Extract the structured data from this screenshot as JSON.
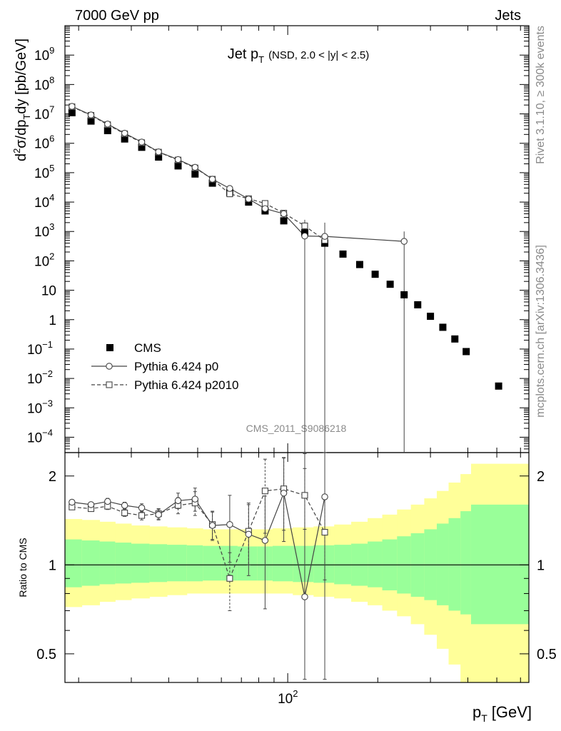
{
  "header": {
    "left": "7000 GeV pp",
    "right": "Jets"
  },
  "side_labels": {
    "rivet": "Rivet 3.1.10, ≥ 300k events",
    "mcplots": "mcplots.cern.ch [arXiv:1306.3436]"
  },
  "watermark": "CMS_2011_S9086218",
  "chart_data": [
    {
      "type": "scatter",
      "title_main": "Jet p",
      "title_sub": "T",
      "title_detail": "(NSD, 2.0 < |y| < 2.5)",
      "ylabel": {
        "d": "d",
        "sup2": "2",
        "sigma_part": "σ/dp",
        "subT": "T",
        "tail": "dy [pb/GeV]"
      },
      "xlog": true,
      "ylog": true,
      "xlim": [
        18,
        640
      ],
      "ylim": [
        3e-05,
        10000000000.0
      ],
      "y_ticks": [
        {
          "v": 1000000000.0,
          "base": "10",
          "exp": "9"
        },
        {
          "v": 100000000.0,
          "base": "10",
          "exp": "8"
        },
        {
          "v": 10000000.0,
          "base": "10",
          "exp": "7"
        },
        {
          "v": 1000000.0,
          "base": "10",
          "exp": "6"
        },
        {
          "v": 100000.0,
          "base": "10",
          "exp": "5"
        },
        {
          "v": 10000.0,
          "base": "10",
          "exp": "4"
        },
        {
          "v": 1000.0,
          "base": "10",
          "exp": "3"
        },
        {
          "v": 100.0,
          "base": "10",
          "exp": "2"
        },
        {
          "v": 10,
          "base": "10",
          "exp": ""
        },
        {
          "v": 1,
          "base": "1",
          "exp": ""
        },
        {
          "v": 0.1,
          "base": "10",
          "exp": "−1"
        },
        {
          "v": 0.01,
          "base": "10",
          "exp": "−2"
        },
        {
          "v": 0.001,
          "base": "10",
          "exp": "−3"
        },
        {
          "v": 0.0001,
          "base": "10",
          "exp": "−4"
        }
      ],
      "legend": {
        "placement": "lower-left",
        "entries": [
          "CMS",
          "Pythia 6.424 p0",
          "Pythia 6.424 p2010"
        ]
      },
      "series": [
        {
          "name": "CMS",
          "style": "filled-square",
          "color": "#000000",
          "x": [
            19,
            22,
            25,
            28.5,
            32.5,
            37,
            43,
            49,
            56,
            64,
            74,
            84,
            97,
            114,
            133,
            153,
            174,
            196,
            220,
            245,
            272,
            300,
            330,
            362,
            395,
            507
          ],
          "y": [
            11000000.0,
            5700000.0,
            2700000.0,
            1400000.0,
            730000.0,
            340000.0,
            170000.0,
            90000.0,
            44000.0,
            21000.0,
            10000.0,
            5000.0,
            2300.0,
            900.0,
            400.0,
            170.0,
            75,
            35,
            16,
            7,
            3.2,
            1.3,
            0.55,
            0.22,
            0.082,
            0.0055
          ]
        },
        {
          "name": "Pythia 6.424 p0",
          "style": "open-circle-solid",
          "color": "#444444",
          "x": [
            19,
            22,
            25,
            28.5,
            32.5,
            37,
            43,
            49,
            56,
            64,
            74,
            84,
            97,
            114,
            133,
            245
          ],
          "y": [
            18000000.0,
            9200000.0,
            4500000.0,
            2200000.0,
            1100000.0,
            510000.0,
            280000.0,
            152000.0,
            60000.0,
            29000.0,
            12700.0,
            6000.0,
            4000.0,
            700.0,
            680.0,
            460.0
          ]
        },
        {
          "name": "Pythia 6.424 p2010",
          "style": "open-square-dashed",
          "color": "#444444",
          "x": [
            19,
            22,
            25,
            28.5,
            32.5,
            37,
            43,
            49,
            56,
            64,
            74,
            84,
            97,
            114,
            133
          ],
          "y": [
            17500000.0,
            8900000.0,
            4300000.0,
            2100000.0,
            1050000.0,
            500000.0,
            270000.0,
            145000.0,
            60000.0,
            19000.0,
            13000.0,
            9000.0,
            4200.0,
            1550.0,
            500.0
          ]
        }
      ]
    },
    {
      "type": "scatter",
      "ylabel": "Ratio to CMS",
      "xlabel_main": "p",
      "xlabel_sub": "T",
      "xlabel_unit": "[GeV]",
      "xlog": true,
      "ylog": true,
      "xlim": [
        18,
        640
      ],
      "ylim": [
        0.4,
        2.4
      ],
      "y_ticks": [
        {
          "v": 0.5,
          "label": "0.5"
        },
        {
          "v": 1,
          "label": "1"
        },
        {
          "v": 2,
          "label": "2"
        }
      ],
      "x_major_tick": {
        "v": 100,
        "base": "10",
        "exp": "2"
      },
      "band_colors": {
        "inner": "#99ff99",
        "outer": "#ffff99"
      },
      "series": [
        {
          "name": "Pythia 6.424 p0",
          "style": "open-circle-solid",
          "x": [
            19,
            22,
            25,
            28.5,
            32.5,
            37,
            43,
            49,
            56,
            64,
            74,
            84,
            97,
            114,
            133
          ],
          "y": [
            1.63,
            1.6,
            1.64,
            1.59,
            1.56,
            1.48,
            1.65,
            1.67,
            1.36,
            1.37,
            1.27,
            1.21,
            1.75,
            0.78,
            1.7
          ],
          "err": [
            0.03,
            0.03,
            0.04,
            0.04,
            0.05,
            0.06,
            0.1,
            0.15,
            0.15,
            0.35,
            0.35,
            0.5,
            0.55,
            1.6,
            1.6
          ]
        },
        {
          "name": "Pythia 6.424 p2010",
          "style": "open-square-dashed",
          "x": [
            19,
            22,
            25,
            28.5,
            32.5,
            37,
            43,
            49,
            56,
            64,
            74,
            84,
            97,
            114,
            133
          ],
          "y": [
            1.57,
            1.55,
            1.58,
            1.5,
            1.47,
            1.49,
            1.59,
            1.62,
            1.37,
            0.9,
            1.3,
            1.78,
            1.81,
            1.72,
            1.29
          ],
          "err": [
            0.03,
            0.03,
            0.04,
            0.04,
            0.05,
            0.06,
            0.1,
            0.15,
            0.15,
            0.2,
            0.3,
            0.5,
            0.5,
            0.4,
            0.4
          ]
        }
      ],
      "bands": {
        "edges": [
          18,
          20.5,
          23.5,
          26.5,
          30,
          34.5,
          39.5,
          46,
          52,
          60,
          68,
          79,
          89,
          104,
          122,
          143,
          163,
          185,
          207,
          232,
          258,
          286,
          315,
          345,
          378,
          410,
          640
        ],
        "inner_lo": [
          0.84,
          0.85,
          0.86,
          0.865,
          0.87,
          0.875,
          0.88,
          0.88,
          0.885,
          0.885,
          0.885,
          0.885,
          0.88,
          0.875,
          0.87,
          0.86,
          0.85,
          0.84,
          0.82,
          0.8,
          0.78,
          0.76,
          0.73,
          0.7,
          0.68,
          0.63
        ],
        "inner_hi": [
          1.22,
          1.21,
          1.2,
          1.19,
          1.18,
          1.175,
          1.17,
          1.165,
          1.16,
          1.16,
          1.155,
          1.155,
          1.16,
          1.16,
          1.165,
          1.17,
          1.18,
          1.2,
          1.22,
          1.25,
          1.28,
          1.32,
          1.38,
          1.44,
          1.52,
          1.6
        ],
        "outer_lo": [
          0.72,
          0.73,
          0.75,
          0.76,
          0.77,
          0.78,
          0.79,
          0.8,
          0.8,
          0.8,
          0.8,
          0.8,
          0.8,
          0.79,
          0.78,
          0.77,
          0.75,
          0.73,
          0.7,
          0.67,
          0.63,
          0.58,
          0.52,
          0.46,
          0.4,
          0.38
        ],
        "outer_hi": [
          1.43,
          1.42,
          1.4,
          1.38,
          1.36,
          1.35,
          1.34,
          1.33,
          1.32,
          1.32,
          1.32,
          1.32,
          1.33,
          1.34,
          1.35,
          1.37,
          1.4,
          1.44,
          1.48,
          1.54,
          1.6,
          1.68,
          1.78,
          1.9,
          2.03,
          2.2
        ]
      }
    }
  ]
}
